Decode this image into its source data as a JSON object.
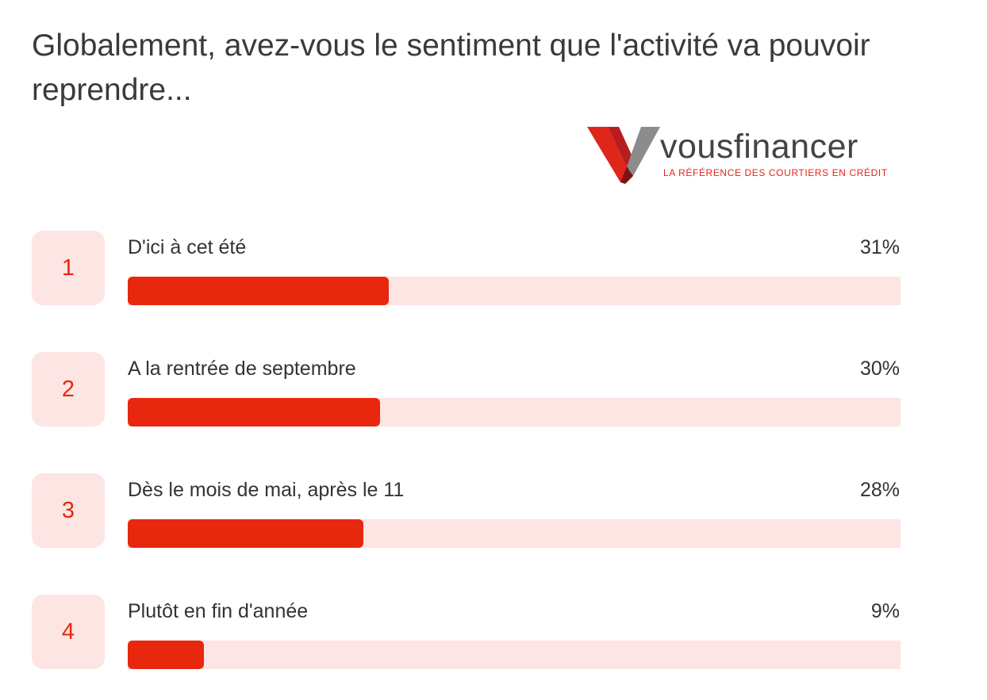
{
  "question": "Globalement, avez-vous le sentiment que l'activité va pouvoir reprendre...",
  "logo": {
    "wordmark": "vousfinancer",
    "tagline": "LA RÉFÉRENCE DES COURTIERS EN CRÉDIT"
  },
  "colors": {
    "accent": "#e8270f",
    "track": "#fde5e3",
    "text": "#333333"
  },
  "chart_data": {
    "type": "bar",
    "orientation": "horizontal",
    "categories": [
      "D'ici à cet été",
      "A la rentrée de septembre",
      "Dès le mois de mai, après le 11",
      "Plutôt en fin d'année"
    ],
    "values": [
      31,
      30,
      28,
      9
    ],
    "ranks": [
      "1",
      "2",
      "3",
      "4"
    ],
    "value_labels": [
      "31%",
      "30%",
      "28%",
      "9%"
    ],
    "unit": "%",
    "xlim": [
      0,
      100
    ],
    "grid": false,
    "legend": "none"
  }
}
